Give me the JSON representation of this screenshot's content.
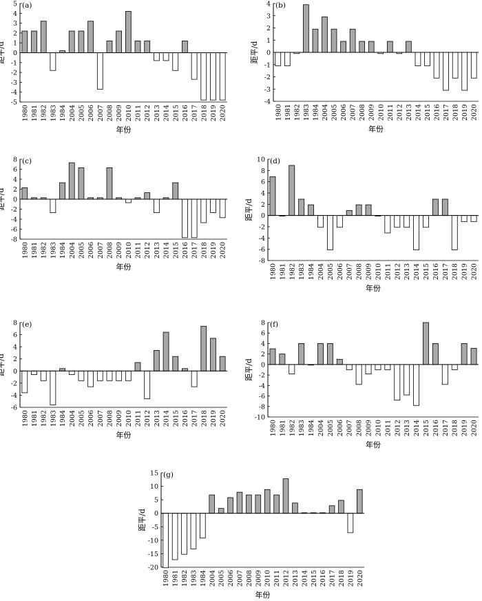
{
  "chart_data": [
    {
      "type": "bar",
      "panel_label": "(a)",
      "xlabel": "年份",
      "ylabel": "距平/d",
      "ylim": [
        -5,
        5
      ],
      "yticks": [
        -5,
        -4,
        -3,
        -2,
        -1,
        0,
        1,
        2,
        3,
        4,
        5
      ],
      "categories": [
        "1980",
        "1981",
        "1982",
        "1983",
        "1984",
        "2004",
        "2005",
        "2006",
        "2007",
        "2008",
        "2009",
        "2010",
        "2011",
        "2012",
        "2013",
        "2014",
        "2015",
        "2016",
        "2017",
        "2018",
        "2019",
        "2020"
      ],
      "values": [
        2.2,
        2.2,
        3.2,
        -1.8,
        0.2,
        2.2,
        2.2,
        3.2,
        -3.7,
        1.2,
        2.2,
        4.2,
        1.2,
        1.2,
        -0.8,
        -0.8,
        -1.8,
        1.2,
        -2.7,
        -4.8,
        -4.8,
        -4.8
      ],
      "colors": {
        "positive": "#a8a8a8",
        "negative": "#ffffff",
        "stroke": "#000000"
      }
    },
    {
      "type": "bar",
      "panel_label": "(b)",
      "xlabel": "年份",
      "ylabel": "距平/d",
      "ylim": [
        -4,
        4
      ],
      "yticks": [
        -4,
        -3,
        -2,
        -1,
        0,
        1,
        2,
        3,
        4
      ],
      "categories": [
        "1980",
        "1981",
        "1982",
        "1983",
        "1984",
        "2004",
        "2005",
        "2006",
        "2007",
        "2008",
        "2009",
        "2010",
        "2011",
        "2012",
        "2013",
        "2014",
        "2015",
        "2016",
        "2017",
        "2018",
        "2019",
        "2020"
      ],
      "values": [
        -1.1,
        -1.1,
        -0.1,
        3.9,
        1.9,
        2.9,
        1.9,
        0.9,
        1.9,
        0.9,
        0.9,
        -0.1,
        0.9,
        -0.1,
        0.9,
        -1.1,
        -1.1,
        -2.1,
        -3.1,
        -2.1,
        -3.1,
        -2.1
      ],
      "colors": {
        "positive": "#a8a8a8",
        "negative": "#ffffff",
        "stroke": "#000000"
      }
    },
    {
      "type": "bar",
      "panel_label": "(c)",
      "xlabel": "年份",
      "ylabel": "距平/d",
      "ylim": [
        -8,
        8
      ],
      "yticks": [
        -8,
        -6,
        -4,
        -2,
        0,
        2,
        4,
        6,
        8
      ],
      "categories": [
        "1980",
        "1981",
        "1982",
        "1983",
        "1984",
        "2004",
        "2005",
        "2006",
        "2007",
        "2008",
        "2009",
        "2010",
        "2011",
        "2012",
        "2013",
        "2014",
        "2015",
        "2016",
        "2017",
        "2018",
        "2019",
        "2020"
      ],
      "values": [
        2.3,
        0.3,
        0.3,
        -2.7,
        3.3,
        7.3,
        6.3,
        0.3,
        0.3,
        6.3,
        0.3,
        -0.7,
        0.3,
        1.3,
        -2.7,
        0.3,
        3.3,
        -7.7,
        -7.7,
        -4.7,
        -2.7,
        -3.7
      ],
      "colors": {
        "positive": "#a8a8a8",
        "negative": "#ffffff",
        "stroke": "#000000"
      }
    },
    {
      "type": "bar",
      "panel_label": "(d)",
      "xlabel": "年份",
      "ylabel": "距平/d",
      "ylim": [
        -8,
        10
      ],
      "yticks": [
        -8,
        -6,
        -4,
        -2,
        0,
        2,
        4,
        6,
        8,
        10
      ],
      "categories": [
        "1980",
        "1981",
        "1982",
        "1983",
        "1984",
        "2004",
        "2005",
        "2006",
        "2007",
        "2008",
        "2009",
        "2010",
        "2011",
        "2012",
        "2013",
        "2014",
        "2015",
        "2016",
        "2017",
        "2018",
        "2019",
        "2020"
      ],
      "values": [
        6.9,
        0,
        8.9,
        2.9,
        1.9,
        -2.1,
        -6.1,
        -2.1,
        0.9,
        1.9,
        1.9,
        0,
        -3.1,
        -2.1,
        -2.1,
        -6.1,
        -2.1,
        2.9,
        2.9,
        -6.1,
        -1.1,
        -1.1
      ],
      "colors": {
        "positive": "#a8a8a8",
        "negative": "#ffffff",
        "stroke": "#000000"
      }
    },
    {
      "type": "bar",
      "panel_label": "(e)",
      "xlabel": "年份",
      "ylabel": "距平/d",
      "ylim": [
        -6,
        8
      ],
      "yticks": [
        -6,
        -4,
        -2,
        0,
        2,
        4,
        6,
        8
      ],
      "categories": [
        "1980",
        "1981",
        "1982",
        "1983",
        "1984",
        "2004",
        "2005",
        "2006",
        "2007",
        "2008",
        "2009",
        "2010",
        "2011",
        "2012",
        "2013",
        "2014",
        "2015",
        "2016",
        "2017",
        "2018",
        "2019",
        "2020"
      ],
      "values": [
        -3.6,
        -0.6,
        -1.6,
        -5.6,
        0.4,
        -0.6,
        -1.6,
        -2.6,
        -1.6,
        -1.6,
        -1.6,
        -1.6,
        1.4,
        -4.6,
        3.4,
        6.4,
        2.4,
        0.4,
        -2.6,
        7.4,
        5.4,
        2.4
      ],
      "colors": {
        "positive": "#a8a8a8",
        "negative": "#ffffff",
        "stroke": "#000000"
      }
    },
    {
      "type": "bar",
      "panel_label": "(f)",
      "xlabel": "年份",
      "ylabel": "距平/d",
      "ylim": [
        -10,
        8
      ],
      "yticks": [
        -10,
        -8,
        -6,
        -4,
        -2,
        0,
        2,
        4,
        6,
        8
      ],
      "categories": [
        "1980",
        "1981",
        "1982",
        "1983",
        "1984",
        "2004",
        "2005",
        "2006",
        "2007",
        "2008",
        "2009",
        "2010",
        "2011",
        "2012",
        "2013",
        "2014",
        "2015",
        "2016",
        "2017",
        "2018",
        "2019",
        "2020"
      ],
      "values": [
        3,
        2,
        -1.8,
        4,
        0,
        4,
        4,
        1,
        -1,
        -3.8,
        -1.8,
        -1,
        -1,
        -6.8,
        -5.8,
        -7.8,
        8,
        4,
        -3.8,
        -1,
        4,
        3.1
      ],
      "colors": {
        "positive": "#a8a8a8",
        "negative": "#ffffff",
        "stroke": "#000000"
      }
    },
    {
      "type": "bar",
      "panel_label": "(g)",
      "xlabel": "年份",
      "ylabel": "距平/d",
      "ylim": [
        -20,
        15
      ],
      "yticks": [
        -20,
        -15,
        -10,
        -5,
        0,
        5,
        10,
        15
      ],
      "categories": [
        "1980",
        "1981",
        "1982",
        "1983",
        "1984",
        "2004",
        "2005",
        "2006",
        "2007",
        "2008",
        "2009",
        "2010",
        "2011",
        "2012",
        "2013",
        "2014",
        "2015",
        "2016",
        "2017",
        "2018",
        "2019",
        "2020"
      ],
      "values": [
        -20.2,
        -17.2,
        -15.2,
        -13.2,
        -9.2,
        6.8,
        1.8,
        5.8,
        7.8,
        6.8,
        6.8,
        8.8,
        6.8,
        12.8,
        3.8,
        0.2,
        0.2,
        0.2,
        2.8,
        4.8,
        -7.2,
        8.8
      ],
      "colors": {
        "positive": "#a8a8a8",
        "negative": "#ffffff",
        "stroke": "#000000"
      }
    }
  ]
}
